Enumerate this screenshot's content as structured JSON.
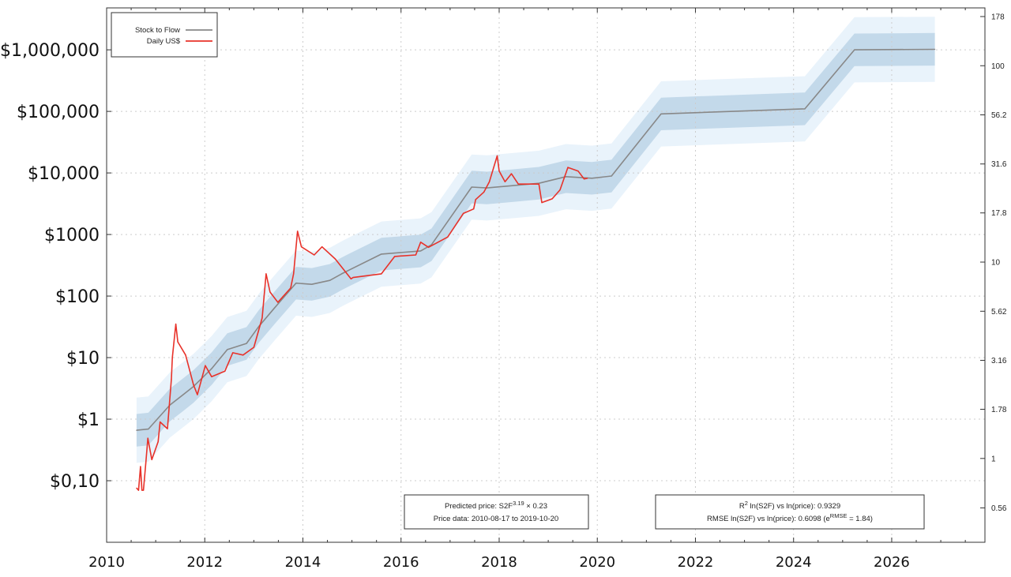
{
  "chart_data": {
    "type": "line",
    "title": "",
    "xlabel": "",
    "ylabel": "",
    "x_range": [
      2010,
      2027.9
    ],
    "y_scale": "log",
    "y_range": [
      0.01,
      4800000
    ],
    "grid": true,
    "legend_position": "top-left",
    "x_ticks": [
      2010,
      2012,
      2014,
      2016,
      2018,
      2020,
      2022,
      2024,
      2026
    ],
    "x_tick_labels": [
      "2010",
      "2012",
      "2014",
      "2016",
      "2018",
      "2020",
      "2022",
      "2024",
      "2026"
    ],
    "y_ticks": [
      0.1,
      1,
      10,
      100,
      1000,
      10000,
      100000,
      1000000
    ],
    "y_tick_labels": [
      "$0,10",
      "$1",
      "$10",
      "$100",
      "$1000",
      "$10,000",
      "$100,000",
      "$1,000,000"
    ],
    "right_axis": {
      "scale": "log",
      "ticks": [
        0.56,
        1,
        1.78,
        3.16,
        5.62,
        10,
        17.8,
        31.6,
        56.2,
        100,
        178
      ],
      "tick_labels": [
        "0.56",
        "1",
        "1.78",
        "3.16",
        "5.62",
        "10",
        "17.8",
        "31.6",
        "56.2",
        "100",
        "178"
      ]
    },
    "band_factor": 1.84,
    "colors": {
      "model": "#888888",
      "price": "#e8322a",
      "band_inner": "#c3d9ea",
      "band_outer": "#e9f3fb"
    },
    "series": [
      {
        "name": "Stock to Flow",
        "color": "#888888",
        "points": [
          [
            2010.61,
            0.66
          ],
          [
            2010.85,
            0.69
          ],
          [
            2011.29,
            1.7
          ],
          [
            2011.56,
            2.5
          ],
          [
            2011.77,
            3.4
          ],
          [
            2012.14,
            6.6
          ],
          [
            2012.46,
            13.5
          ],
          [
            2012.85,
            17
          ],
          [
            2013.1,
            32
          ],
          [
            2013.42,
            64
          ],
          [
            2013.86,
            162
          ],
          [
            2014.18,
            155
          ],
          [
            2014.55,
            180
          ],
          [
            2014.79,
            230
          ],
          [
            2014.94,
            264
          ],
          [
            2015.6,
            480
          ],
          [
            2016.4,
            540
          ],
          [
            2016.62,
            680
          ],
          [
            2017.44,
            5900
          ],
          [
            2017.75,
            5700
          ],
          [
            2018.81,
            6800
          ],
          [
            2019.36,
            8700
          ],
          [
            2019.89,
            8200
          ],
          [
            2020.29,
            8900
          ],
          [
            2021.3,
            91000
          ],
          [
            2024.23,
            110000
          ],
          [
            2025.24,
            1000000
          ],
          [
            2026.88,
            1020000
          ]
        ]
      },
      {
        "name": "Daily US$",
        "color": "#e8322a",
        "points": [
          [
            2010.61,
            0.076
          ],
          [
            2010.65,
            0.07
          ],
          [
            2010.69,
            0.17
          ],
          [
            2010.72,
            0.07
          ],
          [
            2010.75,
            0.07
          ],
          [
            2010.8,
            0.2
          ],
          [
            2010.84,
            0.49
          ],
          [
            2010.92,
            0.22
          ],
          [
            2011.05,
            0.43
          ],
          [
            2011.09,
            0.9
          ],
          [
            2011.24,
            0.7
          ],
          [
            2011.32,
            4.5
          ],
          [
            2011.34,
            10
          ],
          [
            2011.41,
            35
          ],
          [
            2011.45,
            18
          ],
          [
            2011.61,
            11
          ],
          [
            2011.77,
            3.6
          ],
          [
            2011.85,
            2.5
          ],
          [
            2012.01,
            7.4
          ],
          [
            2012.14,
            4.9
          ],
          [
            2012.41,
            6
          ],
          [
            2012.57,
            12
          ],
          [
            2012.78,
            11
          ],
          [
            2013.0,
            14.7
          ],
          [
            2013.17,
            44
          ],
          [
            2013.25,
            230
          ],
          [
            2013.33,
            116
          ],
          [
            2013.49,
            79
          ],
          [
            2013.75,
            135
          ],
          [
            2013.81,
            230
          ],
          [
            2013.89,
            1130
          ],
          [
            2013.97,
            630
          ],
          [
            2014.23,
            465
          ],
          [
            2014.39,
            630
          ],
          [
            2014.66,
            400
          ],
          [
            2014.98,
            190
          ],
          [
            2015.02,
            200
          ],
          [
            2015.6,
            230
          ],
          [
            2015.87,
            440
          ],
          [
            2016.3,
            465
          ],
          [
            2016.4,
            750
          ],
          [
            2016.56,
            620
          ],
          [
            2016.95,
            910
          ],
          [
            2017.27,
            2200
          ],
          [
            2017.48,
            2600
          ],
          [
            2017.52,
            3700
          ],
          [
            2017.69,
            4900
          ],
          [
            2017.8,
            7200
          ],
          [
            2017.96,
            19000
          ],
          [
            2018.0,
            10700
          ],
          [
            2018.12,
            7200
          ],
          [
            2018.25,
            9700
          ],
          [
            2018.39,
            6600
          ],
          [
            2018.81,
            6600
          ],
          [
            2018.87,
            3300
          ],
          [
            2019.08,
            3800
          ],
          [
            2019.24,
            5300
          ],
          [
            2019.4,
            12300
          ],
          [
            2019.61,
            10700
          ],
          [
            2019.73,
            8000
          ],
          [
            2019.8,
            8200
          ]
        ]
      }
    ],
    "legend": [
      "Stock to Flow",
      "Daily US$"
    ],
    "annotations": {
      "box1_line1_prefix": "Predicted price: S2F",
      "box1_line1_sup": "3.19",
      "box1_line1_suffix": " × 0.23",
      "box1_line2": "Price data: 2010-08-17 to 2019-10-20",
      "box2_line1_prefix": "R",
      "box2_line1_sup": "2",
      "box2_line1_suffix": " ln(S2F) vs ln(price): 0.9329",
      "box2_line2_prefix": "RMSE ln(S2F) vs ln(price): 0.6098 (e",
      "box2_line2_sup": "RMSE",
      "box2_line2_suffix": " = 1.84)"
    }
  }
}
